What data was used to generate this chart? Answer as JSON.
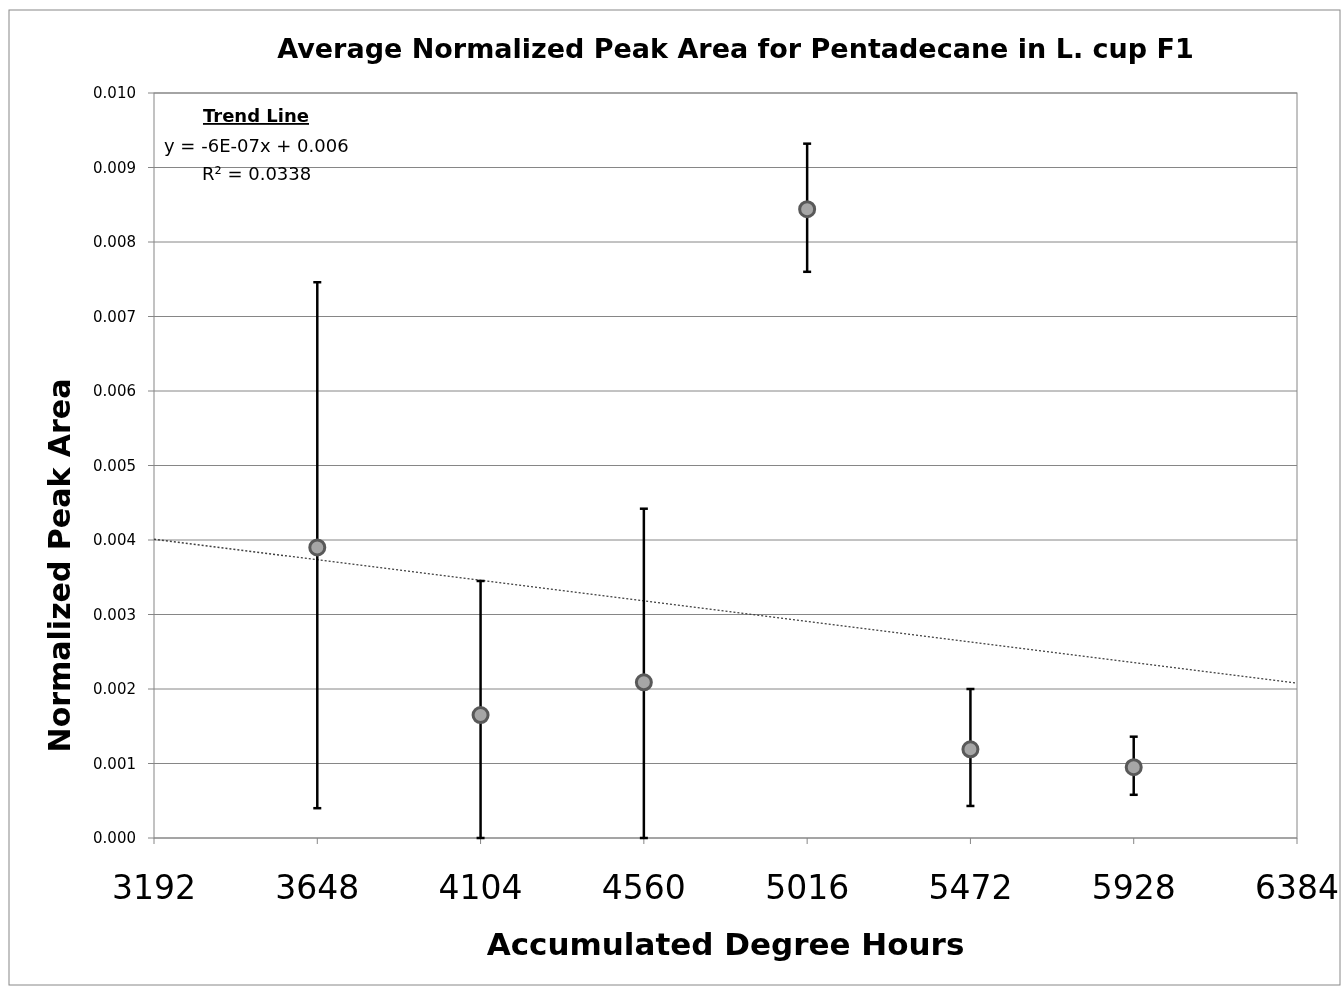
{
  "chart_data": {
    "type": "scatter",
    "title": "Average Normalized Peak Area for Pentadecane in L. cup F1",
    "xlabel": "Accumulated Degree Hours",
    "ylabel": "Normalized Peak Area",
    "xlim": [
      3192,
      6384
    ],
    "xticks": [
      3192,
      3648,
      4104,
      4560,
      5016,
      5472,
      5928,
      6384
    ],
    "ylim": [
      0,
      0.01
    ],
    "yticks": [
      {
        "value": 0,
        "label": "0.000"
      },
      {
        "value": 0.001,
        "label": "0.001"
      },
      {
        "value": 0.002,
        "label": "0.002"
      },
      {
        "value": 0.003,
        "label": "0.003"
      },
      {
        "value": 0.004,
        "label": "0.004"
      },
      {
        "value": 0.005,
        "label": "0.005"
      },
      {
        "value": 0.006,
        "label": "0.006"
      },
      {
        "value": 0.007,
        "label": "0.007"
      },
      {
        "value": 0.008,
        "label": "0.008"
      },
      {
        "value": 0.009,
        "label": "0.009"
      },
      {
        "value": 0.01,
        "label": "0.010"
      }
    ],
    "grid": "y",
    "series": [
      {
        "type": "line",
        "color": "#404040",
        "line_style": "dotted",
        "x": [
          3192,
          6384
        ],
        "values": [
          0.00401,
          0.00208
        ]
      },
      {
        "color": "#a6a6a6",
        "marker": "circle",
        "x": [
          3648,
          4104,
          4560,
          5016,
          5472,
          5928
        ],
        "values": [
          0.0039,
          0.00165,
          0.00209,
          0.00844,
          0.00119,
          0.00095
        ],
        "errors": [
          [
            0.0004,
            0.00746
          ],
          [
            0,
            0.00345
          ],
          [
            0,
            0.00442
          ],
          [
            0.0076,
            0.00932
          ],
          [
            0.00043,
            0.002
          ],
          [
            0.00058,
            0.00136
          ]
        ]
      }
    ],
    "annotations": [
      "Trend Line",
      "y = -6E-07x + 0.006",
      "R² = 0.0338"
    ]
  }
}
